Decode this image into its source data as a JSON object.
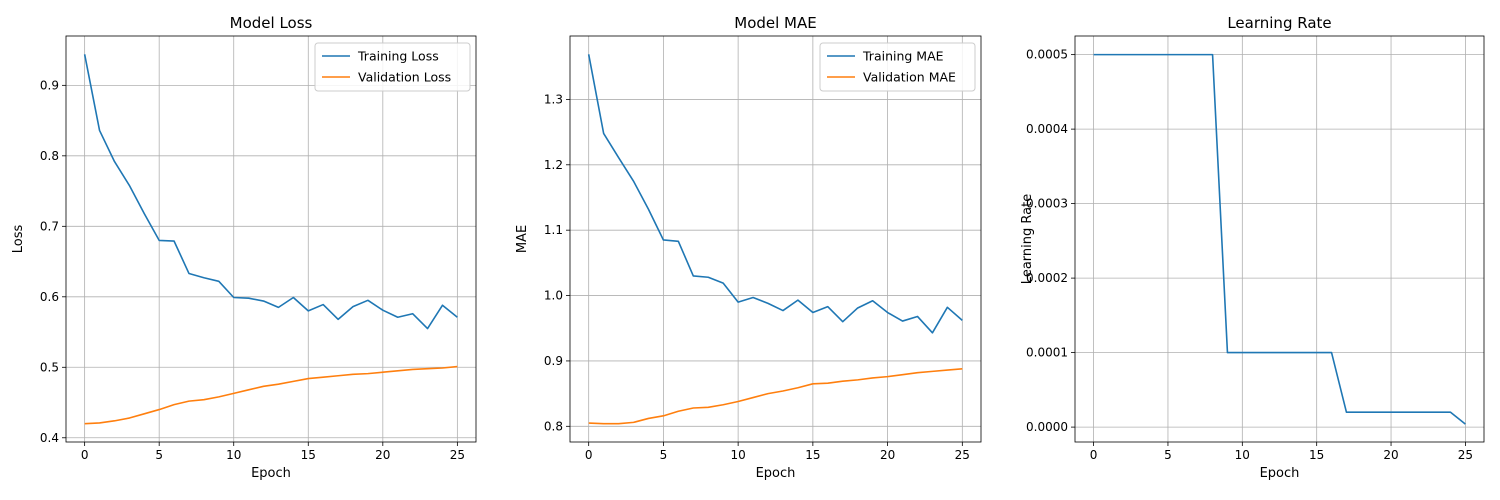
{
  "chart_data": [
    {
      "type": "line",
      "title": "Model Loss",
      "xlabel": "Epoch",
      "ylabel": "Loss",
      "xlim": [
        -1.25,
        26.25
      ],
      "ylim": [
        0.394,
        0.97
      ],
      "xticks": [
        0,
        5,
        10,
        15,
        20,
        25
      ],
      "xtick_labels": [
        "0",
        "5",
        "10",
        "15",
        "20",
        "25"
      ],
      "yticks": [
        0.4,
        0.5,
        0.6,
        0.7,
        0.8,
        0.9
      ],
      "ytick_labels": [
        "0.4",
        "0.5",
        "0.6",
        "0.7",
        "0.8",
        "0.9"
      ],
      "grid": true,
      "legend_position": "top-right",
      "x": [
        0,
        1,
        2,
        3,
        4,
        5,
        6,
        7,
        8,
        9,
        10,
        11,
        12,
        13,
        14,
        15,
        16,
        17,
        18,
        19,
        20,
        21,
        22,
        23,
        24,
        25
      ],
      "series": [
        {
          "name": "Training Loss",
          "color": "#1f77b4",
          "values": [
            0.944,
            0.836,
            0.792,
            0.758,
            0.718,
            0.68,
            0.679,
            0.633,
            0.627,
            0.622,
            0.599,
            0.598,
            0.594,
            0.585,
            0.599,
            0.58,
            0.589,
            0.568,
            0.586,
            0.595,
            0.581,
            0.571,
            0.576,
            0.555,
            0.588,
            0.571
          ]
        },
        {
          "name": "Validation Loss",
          "color": "#ff7f0e",
          "values": [
            0.42,
            0.421,
            0.424,
            0.428,
            0.434,
            0.44,
            0.447,
            0.452,
            0.454,
            0.458,
            0.463,
            0.468,
            0.473,
            0.476,
            0.48,
            0.484,
            0.486,
            0.488,
            0.49,
            0.491,
            0.493,
            0.495,
            0.497,
            0.498,
            0.499,
            0.501
          ]
        }
      ]
    },
    {
      "type": "line",
      "title": "Model MAE",
      "xlabel": "Epoch",
      "ylabel": "MAE",
      "xlim": [
        -1.25,
        26.25
      ],
      "ylim": [
        0.776,
        1.397
      ],
      "xticks": [
        0,
        5,
        10,
        15,
        20,
        25
      ],
      "xtick_labels": [
        "0",
        "5",
        "10",
        "15",
        "20",
        "25"
      ],
      "yticks": [
        0.8,
        0.9,
        1.0,
        1.1,
        1.2,
        1.3
      ],
      "ytick_labels": [
        "0.8",
        "0.9",
        "1.0",
        "1.1",
        "1.2",
        "1.3"
      ],
      "grid": true,
      "legend_position": "top-right",
      "x": [
        0,
        1,
        2,
        3,
        4,
        5,
        6,
        7,
        8,
        9,
        10,
        11,
        12,
        13,
        14,
        15,
        16,
        17,
        18,
        19,
        20,
        21,
        22,
        23,
        24,
        25
      ],
      "series": [
        {
          "name": "Training MAE",
          "color": "#1f77b4",
          "values": [
            1.369,
            1.248,
            1.211,
            1.175,
            1.132,
            1.085,
            1.083,
            1.03,
            1.028,
            1.019,
            0.99,
            0.997,
            0.988,
            0.977,
            0.993,
            0.974,
            0.983,
            0.96,
            0.981,
            0.992,
            0.974,
            0.961,
            0.968,
            0.943,
            0.982,
            0.962
          ]
        },
        {
          "name": "Validation MAE",
          "color": "#ff7f0e",
          "values": [
            0.805,
            0.804,
            0.804,
            0.806,
            0.812,
            0.816,
            0.823,
            0.828,
            0.829,
            0.833,
            0.838,
            0.844,
            0.85,
            0.854,
            0.859,
            0.865,
            0.866,
            0.869,
            0.871,
            0.874,
            0.876,
            0.879,
            0.882,
            0.884,
            0.886,
            0.888
          ]
        }
      ]
    },
    {
      "type": "line",
      "title": "Learning Rate",
      "xlabel": "Epoch",
      "ylabel": "Learning Rate",
      "xlim": [
        -1.25,
        26.25
      ],
      "ylim": [
        -2e-05,
        0.000525
      ],
      "xticks": [
        0,
        5,
        10,
        15,
        20,
        25
      ],
      "xtick_labels": [
        "0",
        "5",
        "10",
        "15",
        "20",
        "25"
      ],
      "yticks": [
        0,
        0.0001,
        0.0002,
        0.0003,
        0.0004,
        0.0005
      ],
      "ytick_labels": [
        "0.0000",
        "0.0001",
        "0.0002",
        "0.0003",
        "0.0004",
        "0.0005"
      ],
      "grid": true,
      "legend_position": "none",
      "x": [
        0,
        1,
        2,
        3,
        4,
        5,
        6,
        7,
        8,
        9,
        10,
        11,
        12,
        13,
        14,
        15,
        16,
        17,
        18,
        19,
        20,
        21,
        22,
        23,
        24,
        25
      ],
      "series": [
        {
          "color": "#1f77b4",
          "values": [
            0.0005,
            0.0005,
            0.0005,
            0.0005,
            0.0005,
            0.0005,
            0.0005,
            0.0005,
            0.0005,
            0.0001,
            0.0001,
            0.0001,
            0.0001,
            0.0001,
            0.0001,
            0.0001,
            0.0001,
            2e-05,
            2e-05,
            2e-05,
            2e-05,
            2e-05,
            2e-05,
            2e-05,
            2e-05,
            4e-06
          ]
        }
      ]
    }
  ]
}
